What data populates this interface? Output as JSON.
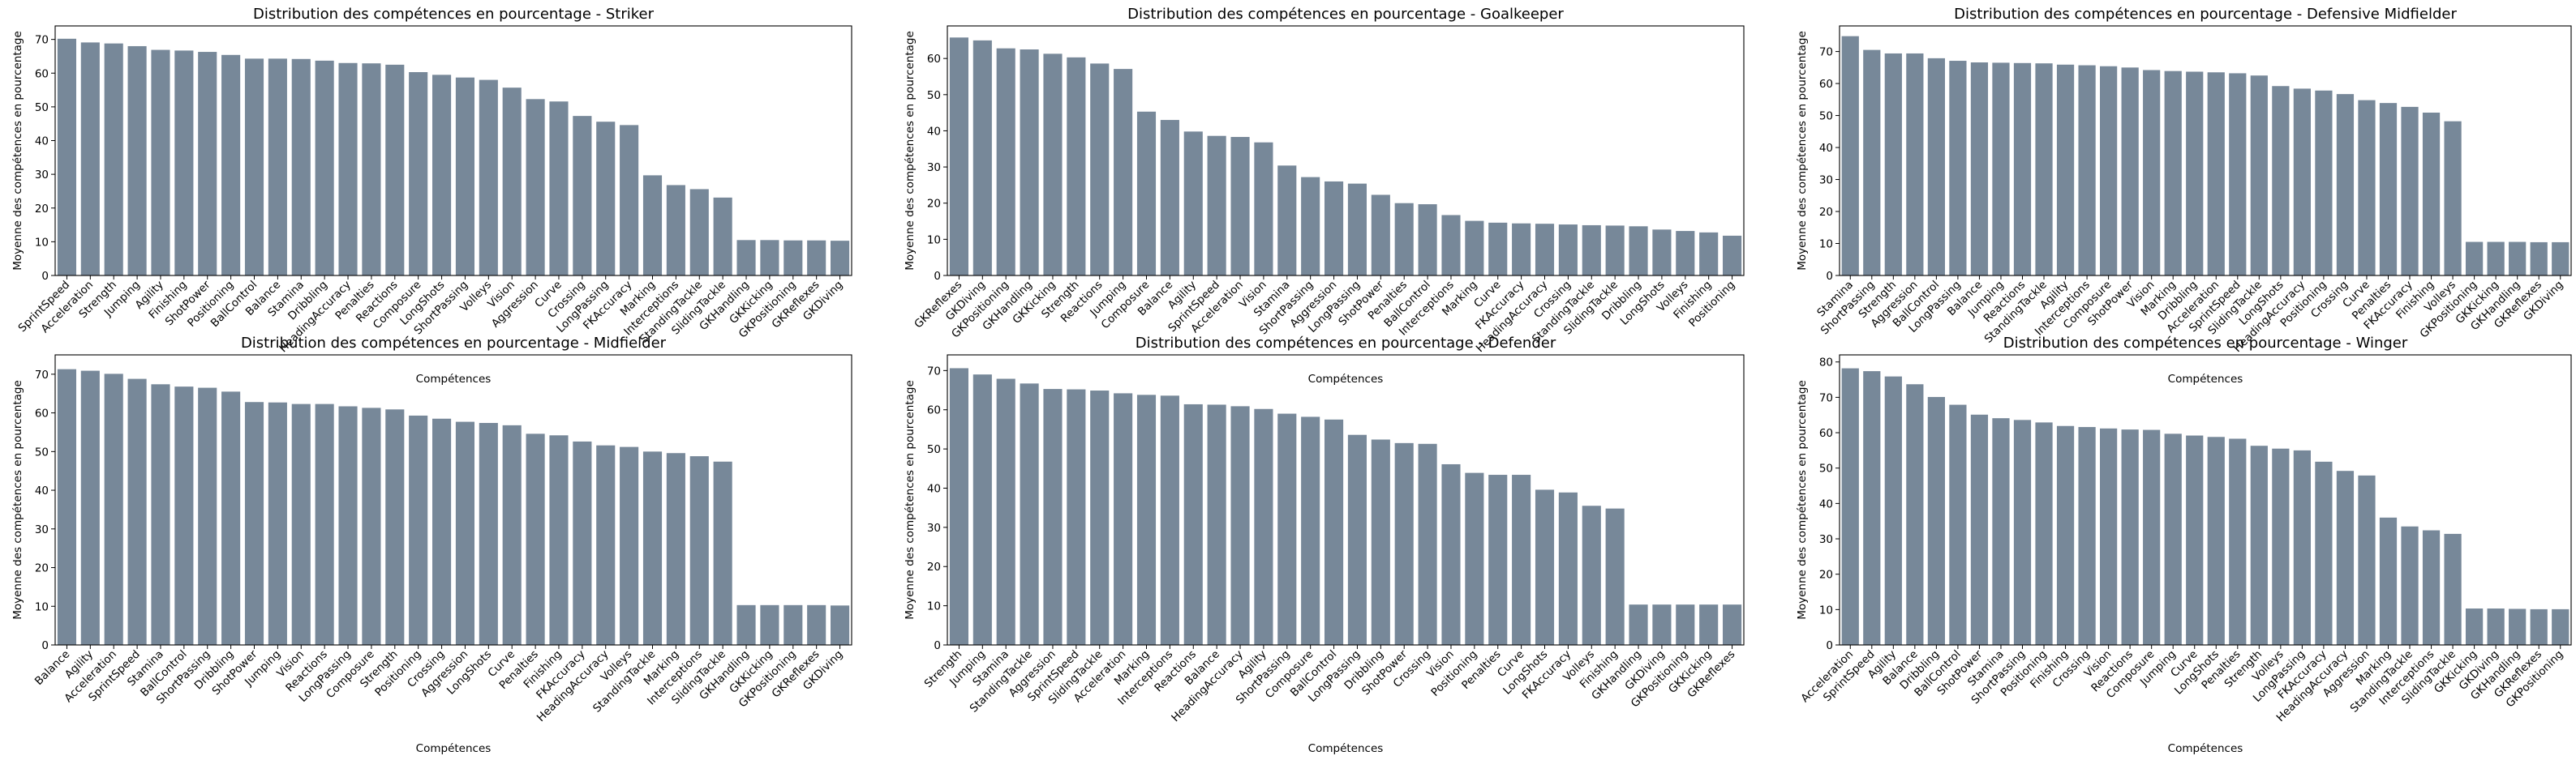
{
  "style": {
    "bar_color": "#778899",
    "background": "#ffffff"
  },
  "chart_data": [
    {
      "type": "bar",
      "title": "Distribution des compétences en pourcentage - Striker",
      "xlabel": "Compétences",
      "ylabel": "Moyenne des compétences en pourcentage",
      "ylim": [
        0,
        74
      ],
      "yticks": [
        0,
        10,
        20,
        30,
        40,
        50,
        60,
        70
      ],
      "categories": [
        "SprintSpeed",
        "Acceleration",
        "Strength",
        "Jumping",
        "Agility",
        "Finishing",
        "ShotPower",
        "Positioning",
        "BallControl",
        "Balance",
        "Stamina",
        "Dribbling",
        "HeadingAccuracy",
        "Penalties",
        "Reactions",
        "Composure",
        "LongShots",
        "ShortPassing",
        "Volleys",
        "Vision",
        "Aggression",
        "Curve",
        "Crossing",
        "LongPassing",
        "FKAccuracy",
        "Marking",
        "Interceptions",
        "StandingTackle",
        "SlidingTackle",
        "GKHandling",
        "GKKicking",
        "GKPositioning",
        "GKReflexes",
        "GKDiving"
      ],
      "values": [
        70.2,
        69.1,
        68.8,
        68.0,
        66.9,
        66.7,
        66.3,
        65.4,
        64.3,
        64.3,
        64.2,
        63.7,
        63.0,
        62.9,
        62.5,
        60.3,
        59.5,
        58.7,
        58.0,
        55.7,
        52.3,
        51.6,
        47.3,
        45.6,
        44.6,
        29.7,
        26.8,
        25.6,
        23.1,
        10.5,
        10.5,
        10.4,
        10.4,
        10.3
      ]
    },
    {
      "type": "bar",
      "title": "Distribution des compétences en pourcentage - Goalkeeper",
      "xlabel": "Compétences",
      "ylabel": "Moyenne des compétences en pourcentage",
      "ylim": [
        0,
        69
      ],
      "yticks": [
        0,
        10,
        20,
        30,
        40,
        50,
        60
      ],
      "categories": [
        "GKReflexes",
        "GKDiving",
        "GKPositioning",
        "GKHandling",
        "GKKicking",
        "Strength",
        "Reactions",
        "Jumping",
        "Composure",
        "Balance",
        "Agility",
        "SprintSpeed",
        "Acceleration",
        "Vision",
        "Stamina",
        "ShortPassing",
        "Aggression",
        "LongPassing",
        "ShotPower",
        "Penalties",
        "BallControl",
        "Interceptions",
        "Marking",
        "Curve",
        "FKAccuracy",
        "HeadingAccuracy",
        "Crossing",
        "StandingTackle",
        "SlidingTackle",
        "Dribbling",
        "LongShots",
        "Volleys",
        "Finishing",
        "Positioning"
      ],
      "values": [
        65.8,
        65.0,
        62.8,
        62.5,
        61.3,
        60.3,
        58.6,
        57.1,
        45.3,
        43.0,
        39.8,
        38.6,
        38.3,
        36.8,
        30.4,
        27.2,
        26.0,
        25.4,
        22.3,
        20.0,
        19.7,
        16.7,
        15.1,
        14.6,
        14.4,
        14.3,
        14.1,
        13.9,
        13.8,
        13.6,
        12.7,
        12.3,
        11.9,
        11.0
      ]
    },
    {
      "type": "bar",
      "title": "Distribution des compétences en pourcentage - Defensive Midfielder",
      "xlabel": "Compétences",
      "ylabel": "Moyenne des compétences en pourcentage",
      "ylim": [
        0,
        78
      ],
      "yticks": [
        0,
        10,
        20,
        30,
        40,
        50,
        60,
        70
      ],
      "categories": [
        "Stamina",
        "ShortPassing",
        "Strength",
        "Aggression",
        "BallControl",
        "LongPassing",
        "Balance",
        "Jumping",
        "Reactions",
        "StandingTackle",
        "Agility",
        "Interceptions",
        "Composure",
        "ShotPower",
        "Vision",
        "Marking",
        "Dribbling",
        "Acceleration",
        "SprintSpeed",
        "SlidingTackle",
        "LongShots",
        "HeadingAccuracy",
        "Positioning",
        "Crossing",
        "Curve",
        "Penalties",
        "FKAccuracy",
        "Finishing",
        "Volleys",
        "GKPositioning",
        "GKKicking",
        "GKHandling",
        "GKReflexes",
        "GKDiving"
      ],
      "values": [
        74.8,
        70.5,
        69.4,
        69.4,
        67.9,
        67.1,
        66.6,
        66.5,
        66.4,
        66.3,
        65.9,
        65.7,
        65.4,
        65.0,
        64.2,
        63.9,
        63.7,
        63.5,
        63.2,
        62.5,
        59.2,
        58.4,
        57.8,
        56.7,
        54.8,
        53.9,
        52.7,
        50.9,
        48.2,
        10.5,
        10.5,
        10.5,
        10.4,
        10.4
      ]
    },
    {
      "type": "bar",
      "title": "Distribution des compétences en pourcentage - Midfielder",
      "xlabel": "Compétences",
      "ylabel": "Moyenne des compétences en pourcentage",
      "ylim": [
        0,
        75
      ],
      "yticks": [
        0,
        10,
        20,
        30,
        40,
        50,
        60,
        70
      ],
      "categories": [
        "Balance",
        "Agility",
        "Acceleration",
        "SprintSpeed",
        "Stamina",
        "BallControl",
        "ShortPassing",
        "Dribbling",
        "ShotPower",
        "Jumping",
        "Vision",
        "Reactions",
        "LongPassing",
        "Composure",
        "Strength",
        "Positioning",
        "Crossing",
        "Aggression",
        "LongShots",
        "Curve",
        "Penalties",
        "Finishing",
        "FKAccuracy",
        "HeadingAccuracy",
        "Volleys",
        "StandingTackle",
        "Marking",
        "Interceptions",
        "SlidingTackle",
        "GKHandling",
        "GKKicking",
        "GKPositioning",
        "GKReflexes",
        "GKDiving"
      ],
      "values": [
        71.3,
        70.9,
        70.1,
        68.8,
        67.4,
        66.8,
        66.5,
        65.5,
        62.8,
        62.7,
        62.3,
        62.3,
        61.7,
        61.3,
        60.9,
        59.3,
        58.5,
        57.7,
        57.4,
        56.8,
        54.6,
        54.2,
        52.6,
        51.6,
        51.2,
        50.0,
        49.6,
        48.8,
        47.4,
        10.3,
        10.3,
        10.3,
        10.3,
        10.2
      ]
    },
    {
      "type": "bar",
      "title": "Distribution des compétences en pourcentage - Defender",
      "xlabel": "Compétences",
      "ylabel": "Moyenne des compétences en pourcentage",
      "ylim": [
        0,
        74
      ],
      "yticks": [
        0,
        10,
        20,
        30,
        40,
        50,
        60,
        70
      ],
      "categories": [
        "Strength",
        "Jumping",
        "Stamina",
        "StandingTackle",
        "Aggression",
        "SprintSpeed",
        "SlidingTackle",
        "Acceleration",
        "Marking",
        "Interceptions",
        "Reactions",
        "Balance",
        "HeadingAccuracy",
        "Agility",
        "ShortPassing",
        "Composure",
        "BallControl",
        "LongPassing",
        "Dribbling",
        "ShotPower",
        "Crossing",
        "Vision",
        "Positioning",
        "Penalties",
        "Curve",
        "LongShots",
        "FKAccuracy",
        "Volleys",
        "Finishing",
        "GKHandling",
        "GKDiving",
        "GKPositioning",
        "GKKicking",
        "GKReflexes"
      ],
      "values": [
        70.6,
        69.0,
        67.9,
        66.7,
        65.3,
        65.2,
        64.9,
        64.2,
        63.8,
        63.6,
        61.4,
        61.3,
        60.9,
        60.2,
        59.0,
        58.2,
        57.5,
        53.6,
        52.4,
        51.5,
        51.3,
        46.1,
        43.9,
        43.4,
        43.4,
        39.6,
        38.9,
        35.5,
        34.8,
        10.3,
        10.3,
        10.3,
        10.3,
        10.3
      ]
    },
    {
      "type": "bar",
      "title": "Distribution des compétences en pourcentage - Winger",
      "xlabel": "Compétences",
      "ylabel": "Moyenne des compétences en pourcentage",
      "ylim": [
        0,
        82
      ],
      "yticks": [
        0,
        10,
        20,
        30,
        40,
        50,
        60,
        70,
        80
      ],
      "categories": [
        "Acceleration",
        "SprintSpeed",
        "Agility",
        "Balance",
        "Dribbling",
        "BallControl",
        "ShotPower",
        "Stamina",
        "ShortPassing",
        "Positioning",
        "Finishing",
        "Crossing",
        "Vision",
        "Reactions",
        "Composure",
        "Jumping",
        "Curve",
        "LongShots",
        "Penalties",
        "Strength",
        "Volleys",
        "LongPassing",
        "FKAccuracy",
        "HeadingAccuracy",
        "Aggression",
        "Marking",
        "StandingTackle",
        "Interceptions",
        "SlidingTackle",
        "GKKicking",
        "GKDiving",
        "GKHandling",
        "GKReflexes",
        "GKPositioning"
      ],
      "values": [
        78.2,
        77.4,
        75.9,
        73.7,
        70.1,
        67.9,
        65.1,
        64.1,
        63.6,
        62.9,
        61.9,
        61.6,
        61.2,
        60.9,
        60.8,
        59.7,
        59.2,
        58.8,
        58.3,
        56.3,
        55.5,
        55.0,
        51.8,
        49.2,
        47.9,
        36.0,
        33.5,
        32.4,
        31.4,
        10.3,
        10.3,
        10.2,
        10.1,
        10.1
      ]
    }
  ]
}
